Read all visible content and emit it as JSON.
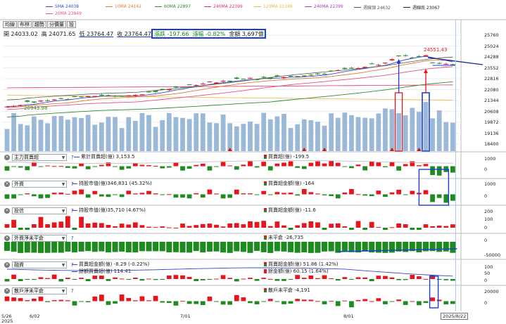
{
  "legend": [
    {
      "label": "5MA 24038",
      "color": "#3b49c8"
    },
    {
      "label": "10MA 24142",
      "color": "#e07838"
    },
    {
      "label": "60MA 22897",
      "color": "#2e8b2e"
    },
    {
      "label": "240MA 22399",
      "color": "#e03060"
    },
    {
      "label": "120MA 21348",
      "color": "#e8b84a"
    },
    {
      "label": "240MA 22399",
      "color": "#a040c0"
    },
    {
      "label": "週線頂 24632",
      "color": "#555555"
    },
    {
      "label": "週線底 23067",
      "color": "#222222"
    },
    {
      "label": "20MA 23849",
      "color": "#e85080"
    }
  ],
  "toolbar": {
    "tabs": [
      "均線",
      "布林",
      "趨勢",
      "分價量",
      "設"
    ]
  },
  "ohlc": {
    "open_label": "開",
    "open": "24033.02",
    "high_label": "高",
    "high": "24071.65",
    "low_label": "低",
    "low": "23764.47",
    "close_label": "收",
    "close": "23764.47"
  },
  "change": {
    "chg_label": "漲跌",
    "chg": "-197.66",
    "pct_label": "漲幅",
    "pct": "-0.82%",
    "amt_label": "金額",
    "amt": "3,697億"
  },
  "annotations": {
    "high_mark": "24551.43",
    "low_mark": "20943.98"
  },
  "price_axis": [
    "25760",
    "25024",
    "24288",
    "23552",
    "22816",
    "22080",
    "21344",
    "20608",
    "19872",
    "19136",
    "18400"
  ],
  "x_axis": {
    "labels": [
      "5/26",
      "6/02",
      "7/01",
      "8/01",
      "2025/8/22"
    ],
    "year": "2025"
  },
  "panels": [
    {
      "combo": "主力買賣超",
      "left_text": "累計買賣超(億) 3,153.5",
      "right_text": "買賣超(億) -199.5",
      "axis": [
        "1000",
        "0"
      ]
    },
    {
      "combo": "外資",
      "left_text": "持股市值(億)346,831 (45.32%)",
      "right_text": "買賣超金額(億) -164",
      "axis": [
        "1000",
        "0"
      ]
    },
    {
      "combo": "投信",
      "left_text": "持股市值(億)35,710 (4.67%)",
      "right_text": "買賣超金額(億) -11.6",
      "axis": [
        "200",
        "100",
        "0"
      ]
    },
    {
      "combo": "外資淨未平倉",
      "left_text": "",
      "right_text": "未平倉 -26,735",
      "axis": [
        "0",
        "-50000"
      ]
    },
    {
      "combo": "融資",
      "left_text": "買賣超金額(億) -8.29 (-0.22%)",
      "left_text2": "餘額買賣超(億) 114.41",
      "right_text": "買賣超金額(億) 51.86 (1.42%)",
      "right_text2": "餘金額(億) 60.15 (1.64%)",
      "axis": [
        "100",
        "50",
        "0"
      ]
    },
    {
      "combo": "散戶淨未平倉",
      "left_text": "",
      "right_text": "散戶未平倉 -4,191",
      "axis": [
        "20000",
        "0"
      ]
    }
  ],
  "colors": {
    "up": "#e8141c",
    "down": "#1f8a1f",
    "volume": "#9ab8d8",
    "highlight": "#1a3fd0"
  },
  "chart_data": [
    {
      "type": "line",
      "title": "",
      "x": [
        "5/26",
        "6/02",
        "7/01",
        "8/01",
        "2025/8/22"
      ],
      "ylim": [
        18400,
        25760
      ],
      "series": [
        {
          "name": "",
          "values": [
            21150,
            21300,
            22350,
            23200,
            23764
          ]
        },
        {
          "name": "5MA 24038",
          "values": [
            21050,
            21200,
            22300,
            23150,
            24038
          ]
        },
        {
          "name": "10MA 24142",
          "values": [
            21000,
            21100,
            22250,
            23100,
            24142
          ]
        },
        {
          "name": "20MA 23849",
          "values": [
            20900,
            21000,
            22150,
            23000,
            23849
          ]
        },
        {
          "name": "60MA 22897",
          "values": [
            20200,
            20450,
            21500,
            22400,
            22897
          ]
        },
        {
          "name": "240MA 22399",
          "values": [
            22200,
            22220,
            22280,
            22340,
            22399
          ]
        },
        {
          "name": "120MA 21348",
          "values": [
            21700,
            21600,
            21450,
            21380,
            21348
          ]
        }
      ]
    },
    {
      "type": "bar",
      "title": "",
      "categories": [
        "5/26",
        "6/02",
        "7/01",
        "8/01",
        "2025/8/22"
      ],
      "series": [
        {
          "name": "",
          "values": [
            3350,
            3100,
            2500,
            3000,
            3697
          ]
        }
      ]
    }
  ]
}
